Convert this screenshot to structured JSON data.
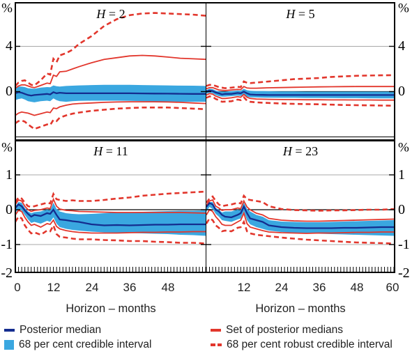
{
  "figure": {
    "kind": "four-panel impulse-response fan chart",
    "panel_titles": [
      "H = 2",
      "H = 5",
      "H = 11",
      "H = 23"
    ]
  },
  "axes": {
    "y_top": {
      "unit": "%",
      "ticks": [
        "4",
        "0"
      ]
    },
    "y_bottom": {
      "unit": "%",
      "ticks": [
        "1",
        "0",
        "-1",
        "-2"
      ]
    },
    "x_left": {
      "title": "Horizon – months",
      "ticks": [
        "0",
        "12",
        "24",
        "36",
        "48"
      ]
    },
    "x_right": {
      "title": "Horizon – months",
      "ticks": [
        "12",
        "24",
        "36",
        "48",
        "60"
      ]
    }
  },
  "legend": {
    "items": [
      {
        "label": "Posterior median",
        "swatch": "navy-line"
      },
      {
        "label": "68 per cent credible interval",
        "swatch": "blue-square"
      },
      {
        "label": "Set of posterior medians",
        "swatch": "red-line"
      },
      {
        "label": "68 per cent robust credible interval",
        "swatch": "red-dashes"
      }
    ]
  },
  "colors": {
    "posterior_median": "#142d8f",
    "credible_band": "#3aa7e0",
    "robust_red": "#e2362c",
    "gridline": "#a8a8a8",
    "zero_line": "#000000",
    "text": "#1f1f1f"
  },
  "chart_data": [
    {
      "type": "line",
      "panel": "top-left",
      "title": "H = 2",
      "title_var": "H",
      "title_eq": " = 2",
      "ylabel_unit": "%",
      "ylim": [
        -4.05,
        7.85
      ],
      "yticks": [
        4,
        0
      ],
      "gridlines": [
        4
      ],
      "x": [
        0,
        1,
        2,
        3,
        4,
        5,
        6,
        8,
        10,
        11,
        12,
        13,
        14,
        16,
        18,
        20,
        24,
        28,
        32,
        36,
        40,
        44,
        48,
        52,
        56,
        60
      ],
      "series": [
        {
          "name": "robust_upper",
          "values": [
            0.5,
            0.8,
            0.95,
            1.0,
            0.8,
            0.6,
            0.55,
            1.0,
            1.6,
            1.5,
            2.9,
            2.6,
            3.2,
            3.4,
            3.7,
            4.2,
            4.9,
            5.8,
            6.4,
            6.75,
            6.9,
            6.95,
            6.9,
            6.85,
            6.8,
            6.7
          ]
        },
        {
          "name": "medians_set_upper",
          "values": [
            0.3,
            0.5,
            0.6,
            0.6,
            0.5,
            0.4,
            0.35,
            0.55,
            0.75,
            0.7,
            1.45,
            1.35,
            1.75,
            1.8,
            2.0,
            2.2,
            2.55,
            2.85,
            3.0,
            3.15,
            3.2,
            3.15,
            3.05,
            2.95,
            2.9,
            2.85
          ]
        },
        {
          "name": "band_upper",
          "values": [
            0.35,
            0.45,
            0.45,
            0.4,
            0.3,
            0.27,
            0.25,
            0.35,
            0.4,
            0.38,
            0.55,
            0.48,
            0.45,
            0.5,
            0.52,
            0.55,
            0.58,
            0.6,
            0.6,
            0.6,
            0.58,
            0.56,
            0.55,
            0.53,
            0.52,
            0.5
          ]
        },
        {
          "name": "median",
          "values": [
            -0.15,
            -0.05,
            -0.1,
            -0.2,
            -0.3,
            -0.35,
            -0.3,
            -0.25,
            -0.2,
            -0.25,
            -0.05,
            -0.15,
            -0.1,
            -0.15,
            -0.15,
            -0.15,
            -0.15,
            -0.15,
            -0.15,
            -0.15,
            -0.16,
            -0.17,
            -0.18,
            -0.19,
            -0.2,
            -0.2
          ]
        },
        {
          "name": "band_lower",
          "values": [
            -0.75,
            -0.65,
            -0.6,
            -0.7,
            -0.85,
            -0.9,
            -0.95,
            -0.85,
            -0.8,
            -0.85,
            -0.6,
            -0.75,
            -0.85,
            -0.9,
            -0.85,
            -0.82,
            -0.8,
            -0.8,
            -0.8,
            -0.82,
            -0.84,
            -0.86,
            -0.88,
            -0.9,
            -0.9,
            -0.9
          ]
        },
        {
          "name": "medians_set_lower",
          "values": [
            -2.1,
            -1.9,
            -1.8,
            -1.85,
            -1.9,
            -2.0,
            -2.1,
            -1.95,
            -1.8,
            -1.85,
            -1.45,
            -1.5,
            -1.35,
            -1.2,
            -1.1,
            -1.05,
            -1.0,
            -0.95,
            -0.92,
            -0.9,
            -0.9,
            -0.9,
            -0.92,
            -0.95,
            -1.0,
            -1.05
          ]
        },
        {
          "name": "robust_lower",
          "values": [
            -2.8,
            -2.6,
            -2.55,
            -2.65,
            -2.9,
            -3.1,
            -3.3,
            -3.1,
            -2.9,
            -2.95,
            -2.5,
            -2.6,
            -2.3,
            -2.1,
            -1.95,
            -1.85,
            -1.7,
            -1.6,
            -1.5,
            -1.45,
            -1.4,
            -1.4,
            -1.4,
            -1.45,
            -1.5,
            -1.55
          ]
        }
      ]
    },
    {
      "type": "line",
      "panel": "top-right",
      "title": "H = 5",
      "title_var": "H",
      "title_eq": " = 5",
      "ylabel_unit": "%",
      "ylim": [
        -4.05,
        7.85
      ],
      "yticks": [
        4,
        0
      ],
      "gridlines": [
        4
      ],
      "x": [
        0,
        1,
        2,
        3,
        4,
        5,
        6,
        8,
        10,
        11,
        12,
        13,
        14,
        16,
        18,
        20,
        24,
        28,
        32,
        36,
        40,
        44,
        48,
        52,
        56,
        60
      ],
      "series": [
        {
          "name": "robust_upper",
          "values": [
            0.5,
            0.6,
            0.6,
            0.5,
            0.4,
            0.35,
            0.3,
            0.35,
            0.42,
            0.4,
            0.9,
            0.78,
            0.75,
            0.8,
            0.85,
            0.9,
            1.0,
            1.1,
            1.15,
            1.2,
            1.3,
            1.35,
            1.4,
            1.42,
            1.44,
            1.45
          ]
        },
        {
          "name": "medians_set_upper",
          "values": [
            0.25,
            0.35,
            0.35,
            0.25,
            0.15,
            0.12,
            0.1,
            0.15,
            0.2,
            0.18,
            0.45,
            0.32,
            0.3,
            0.3,
            0.32,
            0.34,
            0.36,
            0.38,
            0.4,
            0.42,
            0.43,
            0.44,
            0.45,
            0.45,
            0.45,
            0.45
          ]
        },
        {
          "name": "band_upper",
          "values": [
            0.15,
            0.25,
            0.22,
            0.1,
            0.02,
            0.0,
            0.0,
            0.05,
            0.1,
            0.08,
            0.25,
            0.12,
            0.08,
            0.05,
            0.04,
            0.03,
            0.02,
            0.01,
            0.0,
            0.0,
            0.0,
            0.0,
            0.0,
            0.0,
            0.0,
            0.0
          ]
        },
        {
          "name": "median",
          "values": [
            0.0,
            0.1,
            0.05,
            -0.08,
            -0.15,
            -0.25,
            -0.2,
            -0.2,
            -0.12,
            -0.15,
            0.0,
            -0.15,
            -0.25,
            -0.28,
            -0.29,
            -0.3,
            -0.3,
            -0.3,
            -0.3,
            -0.3,
            -0.3,
            -0.3,
            -0.3,
            -0.3,
            -0.3,
            -0.3
          ]
        },
        {
          "name": "band_lower",
          "values": [
            -0.2,
            -0.1,
            -0.15,
            -0.3,
            -0.4,
            -0.45,
            -0.45,
            -0.4,
            -0.35,
            -0.38,
            -0.3,
            -0.45,
            -0.5,
            -0.52,
            -0.53,
            -0.54,
            -0.55,
            -0.55,
            -0.56,
            -0.56,
            -0.57,
            -0.58,
            -0.58,
            -0.59,
            -0.6,
            -0.6
          ]
        },
        {
          "name": "medians_set_lower",
          "values": [
            -0.3,
            -0.18,
            -0.22,
            -0.4,
            -0.5,
            -0.6,
            -0.6,
            -0.55,
            -0.45,
            -0.5,
            -0.25,
            -0.5,
            -0.6,
            -0.65,
            -0.67,
            -0.68,
            -0.7,
            -0.71,
            -0.72,
            -0.72,
            -0.73,
            -0.73,
            -0.74,
            -0.74,
            -0.75,
            -0.75
          ]
        },
        {
          "name": "robust_lower",
          "values": [
            -0.55,
            -0.42,
            -0.45,
            -0.65,
            -0.75,
            -0.9,
            -0.88,
            -0.85,
            -0.7,
            -0.75,
            -0.5,
            -0.8,
            -0.9,
            -0.95,
            -0.98,
            -1.0,
            -1.05,
            -1.08,
            -1.1,
            -1.12,
            -1.15,
            -1.18,
            -1.2,
            -1.21,
            -1.23,
            -1.25
          ]
        }
      ]
    },
    {
      "type": "line",
      "panel": "bottom-left",
      "title": "H = 11",
      "title_var": "H",
      "title_eq": " = 11",
      "ylabel_unit": "%",
      "ylim": [
        -1.78,
        1.98
      ],
      "yticks": [
        1,
        0,
        -1,
        -2
      ],
      "gridlines": [
        1,
        -1
      ],
      "x": [
        0,
        1,
        2,
        3,
        4,
        5,
        6,
        8,
        10,
        11,
        12,
        13,
        14,
        16,
        18,
        20,
        24,
        28,
        32,
        36,
        40,
        44,
        48,
        52,
        56,
        60
      ],
      "series": [
        {
          "name": "robust_upper",
          "values": [
            0.22,
            0.35,
            0.32,
            0.2,
            0.1,
            0.08,
            0.1,
            0.15,
            0.2,
            0.18,
            0.45,
            0.3,
            0.28,
            0.25,
            0.27,
            0.25,
            0.25,
            0.28,
            0.32,
            0.35,
            0.4,
            0.43,
            0.46,
            0.48,
            0.5,
            0.52
          ]
        },
        {
          "name": "medians_set_upper",
          "values": [
            0.15,
            0.28,
            0.25,
            0.1,
            0.0,
            -0.05,
            -0.02,
            0.0,
            0.05,
            0.03,
            0.3,
            0.1,
            0.02,
            -0.02,
            -0.03,
            -0.05,
            -0.06,
            -0.07,
            -0.08,
            -0.08,
            -0.08,
            -0.08,
            -0.08,
            -0.08,
            -0.09,
            -0.1
          ]
        },
        {
          "name": "band_upper",
          "values": [
            0.1,
            0.22,
            0.2,
            0.05,
            -0.05,
            -0.1,
            -0.07,
            -0.05,
            0.0,
            -0.02,
            0.2,
            0.02,
            -0.05,
            -0.1,
            -0.12,
            -0.13,
            -0.12,
            -0.1,
            -0.08,
            -0.07,
            -0.06,
            -0.05,
            -0.04,
            -0.03,
            -0.03,
            -0.02
          ]
        },
        {
          "name": "median",
          "values": [
            0.05,
            0.15,
            0.1,
            -0.02,
            -0.12,
            -0.2,
            -0.15,
            -0.18,
            -0.1,
            -0.12,
            0.0,
            -0.15,
            -0.28,
            -0.3,
            -0.33,
            -0.35,
            -0.42,
            -0.45,
            -0.44,
            -0.45,
            -0.44,
            -0.43,
            -0.43,
            -0.42,
            -0.42,
            -0.42
          ]
        },
        {
          "name": "band_lower",
          "values": [
            -0.1,
            0.02,
            -0.02,
            -0.15,
            -0.28,
            -0.38,
            -0.35,
            -0.4,
            -0.32,
            -0.35,
            -0.22,
            -0.4,
            -0.5,
            -0.55,
            -0.58,
            -0.6,
            -0.63,
            -0.65,
            -0.66,
            -0.67,
            -0.68,
            -0.69,
            -0.7,
            -0.72,
            -0.73,
            -0.75
          ]
        },
        {
          "name": "medians_set_lower",
          "values": [
            -0.15,
            -0.02,
            -0.05,
            -0.22,
            -0.35,
            -0.45,
            -0.42,
            -0.5,
            -0.4,
            -0.42,
            -0.3,
            -0.48,
            -0.55,
            -0.6,
            -0.63,
            -0.65,
            -0.67,
            -0.67,
            -0.67,
            -0.66,
            -0.65,
            -0.65,
            -0.64,
            -0.64,
            -0.63,
            -0.63
          ]
        },
        {
          "name": "robust_lower",
          "values": [
            -0.35,
            -0.2,
            -0.25,
            -0.45,
            -0.58,
            -0.68,
            -0.65,
            -0.72,
            -0.6,
            -0.62,
            -0.45,
            -0.7,
            -0.78,
            -0.8,
            -0.83,
            -0.85,
            -0.85,
            -0.87,
            -0.88,
            -0.9,
            -0.9,
            -0.92,
            -0.93,
            -0.95,
            -0.95,
            -0.97
          ]
        }
      ]
    },
    {
      "type": "line",
      "panel": "bottom-right",
      "title": "H = 23",
      "title_var": "H",
      "title_eq": " = 23",
      "ylabel_unit": "%",
      "ylim": [
        -1.78,
        1.98
      ],
      "yticks": [
        1,
        0,
        -1,
        -2
      ],
      "gridlines": [
        1,
        -1
      ],
      "x": [
        0,
        1,
        2,
        3,
        4,
        5,
        6,
        8,
        10,
        11,
        12,
        13,
        14,
        16,
        18,
        20,
        24,
        28,
        32,
        36,
        40,
        44,
        48,
        52,
        56,
        60
      ],
      "series": [
        {
          "name": "robust_upper",
          "values": [
            0.2,
            0.32,
            0.38,
            0.25,
            0.15,
            0.1,
            0.12,
            0.15,
            0.2,
            0.18,
            0.4,
            0.3,
            0.28,
            0.25,
            0.22,
            0.1,
            0.02,
            -0.01,
            -0.02,
            -0.03,
            -0.02,
            -0.02,
            -0.01,
            0.0,
            0.0,
            0.02
          ]
        },
        {
          "name": "medians_set_upper",
          "values": [
            0.12,
            0.25,
            0.28,
            0.1,
            0.05,
            -0.02,
            0.0,
            0.0,
            0.05,
            0.03,
            0.25,
            0.08,
            0.0,
            -0.1,
            -0.15,
            -0.25,
            -0.3,
            -0.32,
            -0.33,
            -0.33,
            -0.32,
            -0.31,
            -0.3,
            -0.29,
            -0.28,
            -0.27
          ]
        },
        {
          "name": "band_upper",
          "values": [
            0.1,
            0.22,
            0.22,
            0.05,
            0.0,
            -0.08,
            -0.05,
            -0.05,
            0.0,
            -0.02,
            0.2,
            0.02,
            -0.05,
            -0.15,
            -0.2,
            -0.3,
            -0.34,
            -0.35,
            -0.36,
            -0.36,
            -0.35,
            -0.34,
            -0.33,
            -0.32,
            -0.31,
            -0.3
          ]
        },
        {
          "name": "median",
          "values": [
            0.08,
            0.19,
            0.15,
            0.0,
            -0.05,
            -0.15,
            -0.2,
            -0.22,
            -0.15,
            -0.1,
            0.09,
            -0.1,
            -0.25,
            -0.3,
            -0.35,
            -0.45,
            -0.5,
            -0.52,
            -0.53,
            -0.53,
            -0.53,
            -0.52,
            -0.52,
            -0.51,
            -0.5,
            -0.5
          ]
        },
        {
          "name": "band_lower",
          "values": [
            -0.05,
            0.08,
            0.02,
            -0.12,
            -0.2,
            -0.3,
            -0.32,
            -0.35,
            -0.28,
            -0.25,
            -0.05,
            -0.3,
            -0.42,
            -0.5,
            -0.55,
            -0.6,
            -0.64,
            -0.66,
            -0.68,
            -0.69,
            -0.7,
            -0.71,
            -0.72,
            -0.73,
            -0.74,
            -0.75
          ]
        },
        {
          "name": "medians_set_lower",
          "values": [
            -0.15,
            0.0,
            -0.05,
            -0.2,
            -0.3,
            -0.42,
            -0.45,
            -0.45,
            -0.35,
            -0.3,
            -0.1,
            -0.4,
            -0.5,
            -0.55,
            -0.6,
            -0.64,
            -0.66,
            -0.67,
            -0.68,
            -0.67,
            -0.67,
            -0.66,
            -0.65,
            -0.65,
            -0.64,
            -0.64
          ]
        },
        {
          "name": "robust_lower",
          "values": [
            -0.4,
            -0.25,
            -0.3,
            -0.45,
            -0.52,
            -0.62,
            -0.6,
            -0.62,
            -0.52,
            -0.5,
            -0.35,
            -0.62,
            -0.68,
            -0.72,
            -0.74,
            -0.76,
            -0.8,
            -0.83,
            -0.86,
            -0.88,
            -0.9,
            -0.92,
            -0.94,
            -0.95,
            -0.96,
            -0.97
          ]
        }
      ]
    }
  ]
}
